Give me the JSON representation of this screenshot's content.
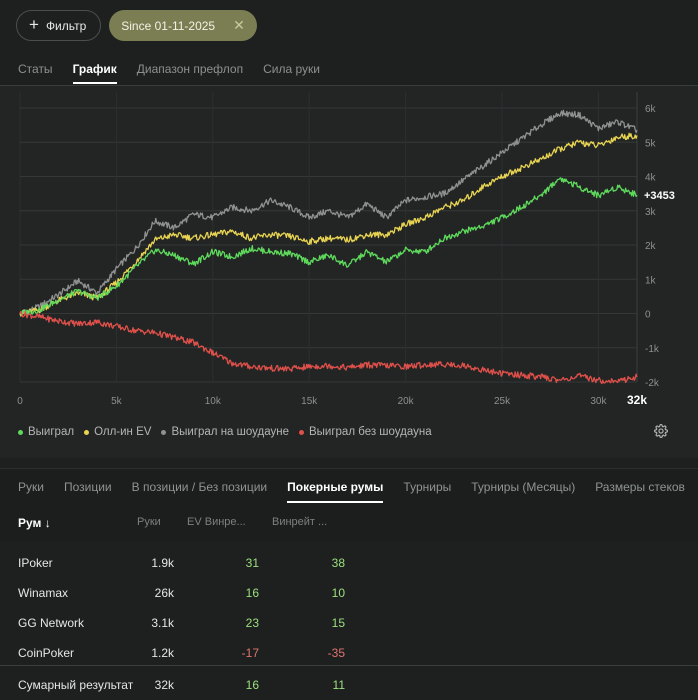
{
  "filter_bar": {
    "filter_button_label": "Фильтр",
    "date_chip_label": "Since 01-11-2025"
  },
  "main_tabs": [
    {
      "label": "Статы",
      "active": false
    },
    {
      "label": "График",
      "active": true
    },
    {
      "label": "Диапазон префлоп",
      "active": false
    },
    {
      "label": "Сила руки",
      "active": false
    }
  ],
  "chart_data": {
    "type": "line",
    "title": "",
    "xlabel": "",
    "ylabel": "",
    "xlim": [
      0,
      32000
    ],
    "ylim": [
      -2000,
      6000
    ],
    "x_tick_labels": [
      "0",
      "5k",
      "10k",
      "15k",
      "20k",
      "25k",
      "30k"
    ],
    "x_tick_values": [
      0,
      5000,
      10000,
      15000,
      20000,
      25000,
      30000
    ],
    "x_end_label": "32k",
    "y_tick_labels": [
      "6k",
      "5k",
      "4k",
      "3k",
      "2k",
      "1k",
      "0",
      "-1k",
      "-2k"
    ],
    "y_tick_values": [
      6000,
      5000,
      4000,
      3000,
      2000,
      1000,
      0,
      -1000,
      -2000
    ],
    "grid": true,
    "end_value_label": "+3453",
    "series": [
      {
        "name": "Выиграл на шоудауне",
        "color": "#8e9190",
        "x": [
          0,
          1000,
          2000,
          3000,
          4000,
          5000,
          6000,
          7000,
          8000,
          9000,
          10000,
          11000,
          12000,
          13000,
          14000,
          15000,
          16000,
          17000,
          18000,
          19000,
          20000,
          21000,
          22000,
          23000,
          24000,
          25000,
          26000,
          27000,
          28000,
          29000,
          30000,
          31000,
          32000
        ],
        "y": [
          0,
          200,
          550,
          950,
          600,
          1300,
          1900,
          2700,
          2500,
          2900,
          2800,
          3100,
          3000,
          3300,
          3100,
          2800,
          3000,
          2800,
          3200,
          2800,
          3300,
          3400,
          3500,
          3900,
          4300,
          4700,
          5100,
          5500,
          5850,
          5800,
          5400,
          5600,
          5350
        ]
      },
      {
        "name": "Олл-ин EV",
        "color": "#e8d352",
        "x": [
          0,
          1000,
          2000,
          3000,
          4000,
          5000,
          6000,
          7000,
          8000,
          9000,
          10000,
          11000,
          12000,
          13000,
          14000,
          15000,
          16000,
          17000,
          18000,
          19000,
          20000,
          21000,
          22000,
          23000,
          24000,
          25000,
          26000,
          27000,
          28000,
          29000,
          30000,
          31000,
          32000
        ],
        "y": [
          0,
          100,
          380,
          600,
          450,
          900,
          1500,
          2150,
          2300,
          2200,
          2300,
          2400,
          2200,
          2300,
          2250,
          2100,
          2200,
          2150,
          2300,
          2300,
          2600,
          2800,
          3100,
          3300,
          3700,
          4000,
          4250,
          4500,
          4800,
          5000,
          4900,
          5150,
          5200
        ]
      },
      {
        "name": "Выиграл",
        "color": "#5fd95c",
        "x": [
          0,
          1000,
          2000,
          3000,
          4000,
          5000,
          6000,
          7000,
          8000,
          9000,
          10000,
          11000,
          12000,
          13000,
          14000,
          15000,
          16000,
          17000,
          18000,
          19000,
          20000,
          21000,
          22000,
          23000,
          24000,
          25000,
          26000,
          27000,
          28000,
          29000,
          30000,
          31000,
          32000
        ],
        "y": [
          0,
          100,
          400,
          650,
          450,
          800,
          1350,
          1850,
          1700,
          1450,
          1800,
          1650,
          1900,
          1800,
          1750,
          1500,
          1700,
          1400,
          1800,
          1500,
          1850,
          1800,
          2200,
          2400,
          2550,
          2800,
          3100,
          3450,
          3950,
          3700,
          3450,
          3700,
          3453
        ]
      },
      {
        "name": "Выиграл без шоудауна",
        "color": "#e0504b",
        "x": [
          0,
          1000,
          2000,
          3000,
          4000,
          5000,
          6000,
          7000,
          8000,
          9000,
          10000,
          11000,
          12000,
          13000,
          14000,
          15000,
          16000,
          17000,
          18000,
          19000,
          20000,
          21000,
          22000,
          23000,
          24000,
          25000,
          26000,
          27000,
          28000,
          29000,
          30000,
          31000,
          32000
        ],
        "y": [
          0,
          -100,
          -220,
          -300,
          -250,
          -380,
          -500,
          -560,
          -700,
          -850,
          -1150,
          -1450,
          -1550,
          -1600,
          -1620,
          -1550,
          -1520,
          -1580,
          -1500,
          -1520,
          -1550,
          -1500,
          -1480,
          -1520,
          -1650,
          -1750,
          -1800,
          -1850,
          -1950,
          -1830,
          -1950,
          -1980,
          -1850
        ]
      }
    ]
  },
  "legend": [
    {
      "label": "Выиграл",
      "color": "#5fd95c"
    },
    {
      "label": "Олл-ин EV",
      "color": "#e8d352"
    },
    {
      "label": "Выиграл на шоудауне",
      "color": "#8e9190"
    },
    {
      "label": "Выиграл без шоудауна",
      "color": "#e0504b"
    }
  ],
  "sub_tabs": [
    {
      "label": "Руки",
      "active": false
    },
    {
      "label": "Позиции",
      "active": false
    },
    {
      "label": "В позиции / Без позиции",
      "active": false
    },
    {
      "label": "Покерные румы",
      "active": true
    },
    {
      "label": "Турниры",
      "active": false
    },
    {
      "label": "Турниры (Месяцы)",
      "active": false
    },
    {
      "label": "Размеры стеков",
      "active": false
    }
  ],
  "table": {
    "headers": {
      "room": "Рум ↓",
      "hands": "Руки",
      "ev_winrate": "EV Винре...",
      "winrate": "Винрейт ..."
    },
    "rows": [
      {
        "room": "IPoker",
        "hands": "1.9k",
        "ev": "31",
        "win": "38"
      },
      {
        "room": "Winamax",
        "hands": "26k",
        "ev": "16",
        "win": "10"
      },
      {
        "room": "GG Network",
        "hands": "3.1k",
        "ev": "23",
        "win": "15"
      },
      {
        "room": "CoinPoker",
        "hands": "1.2k",
        "ev": "-17",
        "win": "-35"
      }
    ],
    "total": {
      "room": "Сумарный результат",
      "hands": "32k",
      "ev": "16",
      "win": "11"
    }
  }
}
